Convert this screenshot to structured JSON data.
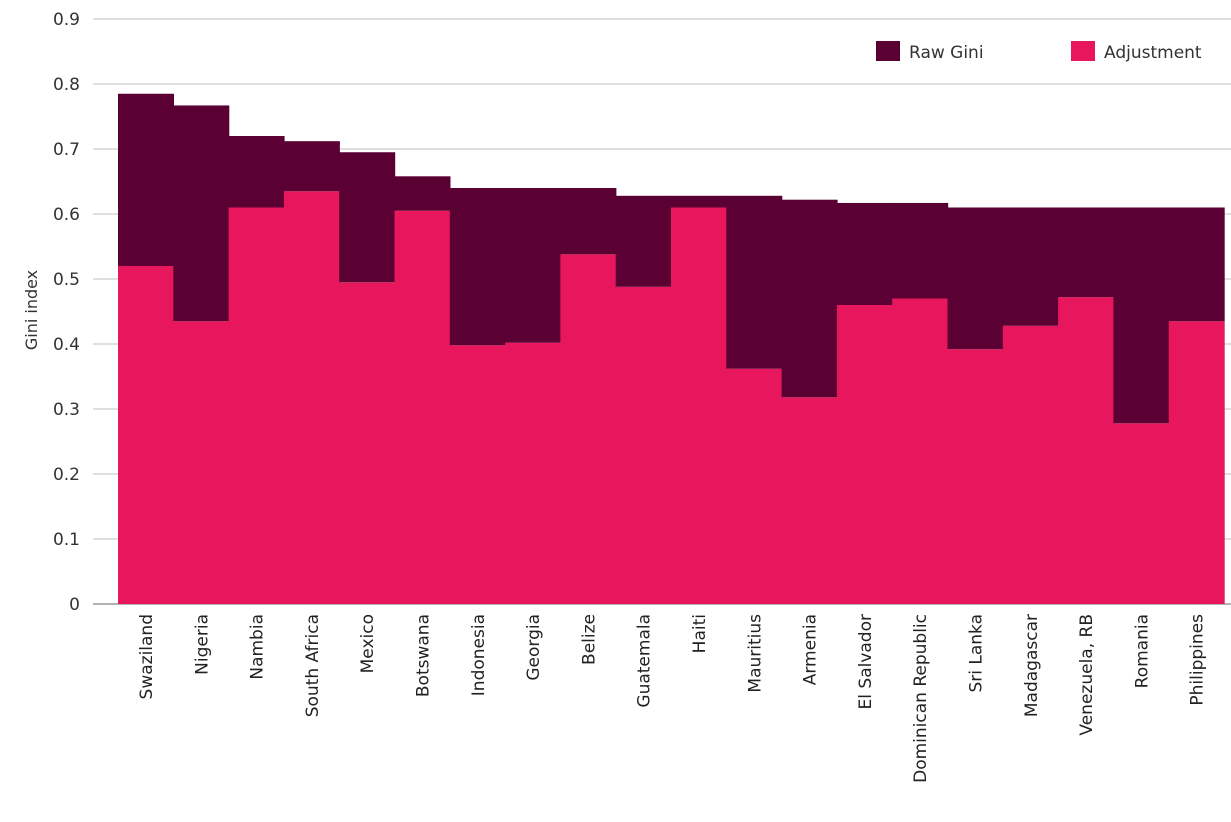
{
  "chart_data": {
    "type": "bar",
    "stacked": true,
    "title": "",
    "xlabel": "",
    "ylabel": "Gini index",
    "ylim": [
      0,
      0.9
    ],
    "yticks": [
      "0",
      "0.1",
      "0.2",
      "0.3",
      "0.4",
      "0.5",
      "0.6",
      "0.7",
      "0.8",
      "0.9"
    ],
    "grid": true,
    "legend_position": "top-right",
    "categories": [
      "Swaziland",
      "Nigeria",
      "Nambia",
      "South Africa",
      "Mexico",
      "Botswana",
      "Indonesia",
      "Georgia",
      "Belize",
      "Guatemala",
      "Haiti",
      "Mauritius",
      "Armenia",
      "El Salvador",
      "Dominican Republic",
      "Sri Lanka",
      "Madagascar",
      "Venezuela, RB",
      "Romania",
      "Philippines"
    ],
    "series": [
      {
        "name": "Adjustment",
        "color": "#E8175D",
        "values": [
          0.52,
          0.435,
          0.61,
          0.635,
          0.495,
          0.605,
          0.398,
          0.402,
          0.538,
          0.488,
          0.61,
          0.362,
          0.318,
          0.46,
          0.47,
          0.392,
          0.428,
          0.472,
          0.278,
          0.435
        ]
      },
      {
        "name": "Raw Gini",
        "color": "#5A0033",
        "values": [
          0.265,
          0.332,
          0.11,
          0.077,
          0.2,
          0.053,
          0.242,
          0.238,
          0.102,
          0.14,
          0.018,
          0.266,
          0.304,
          0.157,
          0.147,
          0.218,
          0.182,
          0.138,
          0.332,
          0.175
        ]
      }
    ]
  }
}
